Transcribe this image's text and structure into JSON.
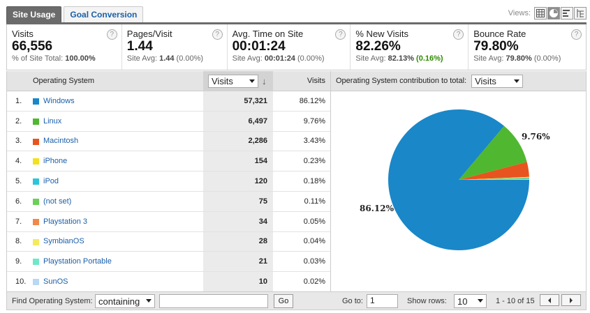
{
  "tabs": [
    {
      "label": "Site Usage",
      "active": true
    },
    {
      "label": "Goal Conversion",
      "active": false
    }
  ],
  "views": {
    "label": "Views:",
    "icons": [
      "table-view-icon",
      "pie-view-icon",
      "performance-view-icon",
      "pivot-view-icon"
    ]
  },
  "metrics": [
    {
      "label": "Visits",
      "value": "66,556",
      "sub_prefix": "% of Site Total: ",
      "sub_value": "100.00%",
      "sub_delta": ""
    },
    {
      "label": "Pages/Visit",
      "value": "1.44",
      "sub_prefix": "Site Avg: ",
      "sub_value": "1.44",
      "sub_delta": " (0.00%)"
    },
    {
      "label": "Avg. Time on Site",
      "value": "00:01:24",
      "sub_prefix": "Site Avg: ",
      "sub_value": "00:01:24",
      "sub_delta": " (0.00%)"
    },
    {
      "label": "% New Visits",
      "value": "82.26%",
      "sub_prefix": "Site Avg: ",
      "sub_value": "82.13%",
      "sub_delta": " (0.16%)"
    },
    {
      "label": "Bounce Rate",
      "value": "79.80%",
      "sub_prefix": "Site Avg: ",
      "sub_value": "79.80%",
      "sub_delta": " (0.00%)"
    }
  ],
  "table": {
    "col_os": "Operating System",
    "sort_select": "Visits",
    "col_visits": "Visits",
    "rows": [
      {
        "num": "1.",
        "name": "Windows",
        "visits": "57,321",
        "pct": "86.12%",
        "color": "#1a87c8"
      },
      {
        "num": "2.",
        "name": "Linux",
        "visits": "6,497",
        "pct": "9.76%",
        "color": "#4fb830"
      },
      {
        "num": "3.",
        "name": "Macintosh",
        "visits": "2,286",
        "pct": "3.43%",
        "color": "#e8541f"
      },
      {
        "num": "4.",
        "name": "iPhone",
        "visits": "154",
        "pct": "0.23%",
        "color": "#f2e11c"
      },
      {
        "num": "5.",
        "name": "iPod",
        "visits": "120",
        "pct": "0.18%",
        "color": "#2ec4dc"
      },
      {
        "num": "6.",
        "name": "(not set)",
        "visits": "75",
        "pct": "0.11%",
        "color": "#6ccf5a"
      },
      {
        "num": "7.",
        "name": "Playstation 3",
        "visits": "34",
        "pct": "0.05%",
        "color": "#f0894a"
      },
      {
        "num": "8.",
        "name": "SymbianOS",
        "visits": "28",
        "pct": "0.04%",
        "color": "#f5ea5e"
      },
      {
        "num": "9.",
        "name": "Playstation Portable",
        "visits": "21",
        "pct": "0.03%",
        "color": "#6fe8c8"
      },
      {
        "num": "10.",
        "name": "SunOS",
        "visits": "10",
        "pct": "0.02%",
        "color": "#b8d8f4"
      }
    ]
  },
  "pie_panel": {
    "label": "Operating System contribution to total:",
    "select": "Visits",
    "label_big": "86.12%",
    "label_small": "9.76%"
  },
  "chart_data": {
    "type": "pie",
    "categories": [
      "Windows",
      "Linux",
      "Macintosh",
      "iPhone",
      "iPod",
      "(not set)",
      "Playstation 3",
      "SymbianOS",
      "Playstation Portable",
      "SunOS"
    ],
    "values": [
      86.12,
      9.76,
      3.43,
      0.23,
      0.18,
      0.11,
      0.05,
      0.04,
      0.03,
      0.02
    ],
    "colors": [
      "#1a87c8",
      "#4fb830",
      "#e8541f",
      "#f2e11c",
      "#2ec4dc",
      "#6ccf5a",
      "#f0894a",
      "#f5ea5e",
      "#6fe8c8",
      "#b8d8f4"
    ]
  },
  "footer": {
    "find_label": "Find Operating System:",
    "match_select": "containing",
    "search_value": "",
    "go_button": "Go",
    "goto_label": "Go to:",
    "goto_value": "1",
    "rows_label": "Show rows:",
    "rows_value": "10",
    "range": "1 - 10 of 15"
  }
}
